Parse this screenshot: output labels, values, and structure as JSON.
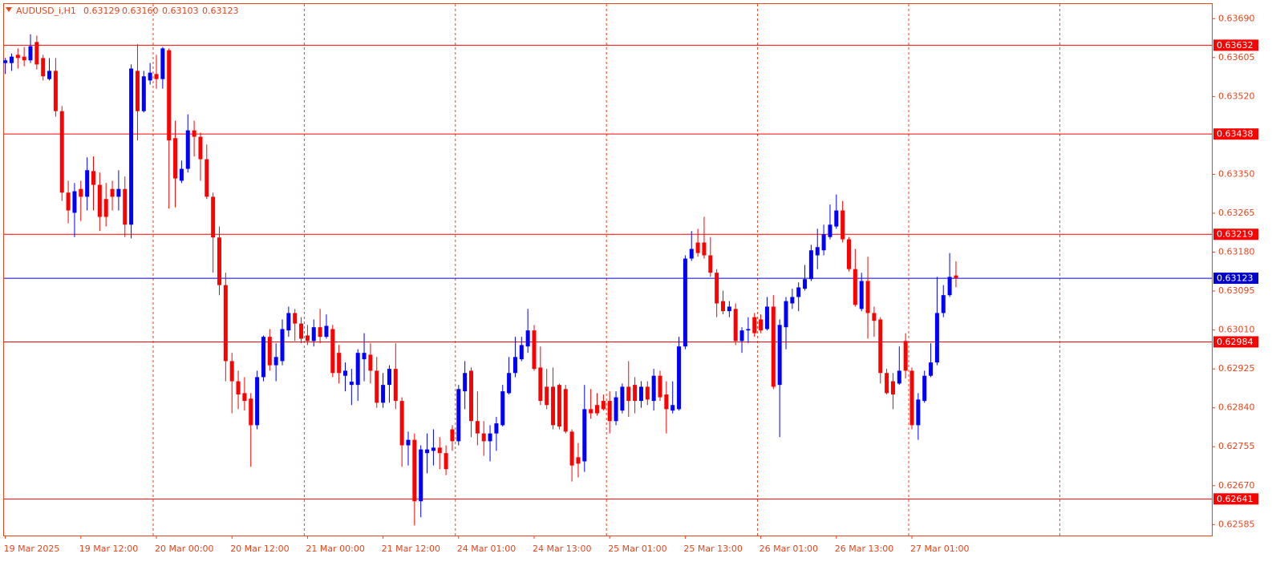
{
  "chart_data": {
    "type": "candlestick",
    "title": "AUDUSD_i,H1",
    "header_values": [
      "0.63129",
      "0.63160",
      "0.63103",
      "0.63123"
    ],
    "categories": [
      "19 Mar 2025",
      null,
      null,
      null,
      null,
      null,
      null,
      null,
      null,
      null,
      null,
      null,
      "19 Mar 12:00",
      null,
      null,
      null,
      null,
      null,
      null,
      null,
      null,
      null,
      null,
      null,
      "20 Mar 00:00",
      null,
      null,
      null,
      null,
      null,
      null,
      null,
      null,
      null,
      null,
      null,
      "20 Mar 12:00",
      null,
      null,
      null,
      null,
      null,
      null,
      null,
      null,
      null,
      null,
      null,
      "21 Mar 00:00",
      null,
      null,
      null,
      null,
      null,
      null,
      null,
      null,
      null,
      null,
      null,
      "21 Mar 12:00",
      null,
      null,
      null,
      null,
      null,
      null,
      null,
      null,
      null,
      null,
      null,
      "24 Mar 01:00",
      null,
      null,
      null,
      null,
      null,
      null,
      null,
      null,
      null,
      null,
      null,
      "24 Mar 13:00",
      null,
      null,
      null,
      null,
      null,
      null,
      null,
      null,
      null,
      null,
      null,
      "25 Mar 01:00",
      null,
      null,
      null,
      null,
      null,
      null,
      null,
      null,
      null,
      null,
      null,
      "25 Mar 13:00",
      null,
      null,
      null,
      null,
      null,
      null,
      null,
      null,
      null,
      null,
      null,
      "26 Mar 01:00",
      null,
      null,
      null,
      null,
      null,
      null,
      null,
      null,
      null,
      null,
      null,
      "26 Mar 13:00",
      null,
      null,
      null,
      null,
      null,
      null,
      null,
      null,
      null,
      null,
      null,
      "27 Mar 01:00",
      null,
      null,
      null,
      null,
      null,
      null,
      null
    ],
    "open": [
      0.63593,
      0.63593,
      0.63611,
      0.63607,
      0.63599,
      0.63639,
      0.63604,
      0.63558,
      0.63576,
      0.63488,
      0.6331,
      0.63266,
      0.63318,
      0.63301,
      0.63357,
      0.63327,
      0.63296,
      0.63318,
      0.63301,
      0.63318,
      0.6324,
      0.63576,
      0.63488,
      0.63555,
      0.63569,
      0.63558,
      0.63621,
      0.63429,
      0.63336,
      0.63362,
      0.63446,
      0.63432,
      0.63383,
      0.63301,
      0.63212,
      0.63108,
      0.62942,
      0.62898,
      0.62872,
      0.6286,
      0.62802,
      0.62907,
      0.62995,
      0.62933,
      0.62942,
      0.63009,
      0.63047,
      0.63024,
      0.62998,
      0.62986,
      0.63016,
      0.62995,
      0.63012,
      0.6296,
      0.6291,
      0.6289,
      0.6289,
      0.62946,
      0.62956,
      0.62921,
      0.62851,
      0.6289,
      0.62925,
      0.62855,
      0.62758,
      0.6277,
      0.62636,
      0.62741,
      0.62746,
      0.62753,
      0.62741,
      0.62793,
      0.62767,
      0.62876,
      0.62921,
      0.62811,
      0.62784,
      0.62767,
      0.62784,
      0.62802,
      0.62872,
      0.62916,
      0.62946,
      0.62974,
      0.63009,
      0.62928,
      0.62886,
      0.62886,
      0.6289,
      0.62881,
      0.62788,
      0.62732,
      0.62723,
      0.62837,
      0.62846,
      0.62855,
      0.62855,
      0.62811,
      0.62834,
      0.62886,
      0.6289,
      0.62855,
      0.62886,
      0.62855,
      0.6291,
      0.62869,
      0.62834,
      0.62837,
      0.62974,
      0.63166,
      0.63201,
      0.63201,
      0.63173,
      0.63135,
      0.63073,
      0.63051,
      0.63056,
      0.62986,
      0.63009,
      0.63038,
      0.63033,
      0.63012,
      0.63061,
      0.6289,
      0.63016,
      0.63068,
      0.63082,
      0.631,
      0.63121,
      0.63173,
      0.63184,
      0.63213,
      0.63236,
      0.63271,
      0.63208,
      0.63143,
      0.63056,
      0.63117,
      0.63047,
      0.63033,
      0.62916,
      0.62898,
      0.62893,
      0.62986,
      0.62921,
      0.62802,
      0.62855,
      0.6291,
      0.62939,
      0.63047,
      0.63086,
      0.63129
    ],
    "high": [
      0.63604,
      0.63614,
      0.63625,
      0.63628,
      0.63656,
      0.63653,
      0.63611,
      0.63604,
      0.63604,
      0.63499,
      0.63336,
      0.63331,
      0.63336,
      0.63387,
      0.63389,
      0.63354,
      0.63331,
      0.63336,
      0.63359,
      0.63345,
      0.6359,
      0.63634,
      0.63576,
      0.63593,
      0.63611,
      0.63628,
      0.63625,
      0.63467,
      0.6338,
      0.63481,
      0.63467,
      0.63441,
      0.63415,
      0.6331,
      0.63236,
      0.63135,
      0.6296,
      0.62921,
      0.62907,
      0.62872,
      0.62921,
      0.62998,
      0.63012,
      0.62981,
      0.63033,
      0.63061,
      0.63056,
      0.63038,
      0.63021,
      0.63033,
      0.63056,
      0.63044,
      0.63021,
      0.62977,
      0.62939,
      0.62925,
      0.62968,
      0.63003,
      0.62981,
      0.62951,
      0.62916,
      0.62933,
      0.62981,
      0.62863,
      0.62788,
      0.62784,
      0.62758,
      0.62784,
      0.62793,
      0.62776,
      0.62758,
      0.62802,
      0.6289,
      0.62942,
      0.62928,
      0.62876,
      0.62811,
      0.62802,
      0.6282,
      0.6289,
      0.62951,
      0.62995,
      0.62995,
      0.63056,
      0.63021,
      0.62974,
      0.62925,
      0.62928,
      0.62893,
      0.6289,
      0.62793,
      0.62763,
      0.6289,
      0.62881,
      0.62872,
      0.62869,
      0.62876,
      0.62876,
      0.62893,
      0.62942,
      0.62907,
      0.62898,
      0.62898,
      0.62925,
      0.62921,
      0.62898,
      0.62898,
      0.62995,
      0.63173,
      0.63226,
      0.63231,
      0.63257,
      0.63213,
      0.63143,
      0.63096,
      0.63073,
      0.63068,
      0.63016,
      0.63038,
      0.63047,
      0.63044,
      0.63082,
      0.63086,
      0.63033,
      0.63082,
      0.631,
      0.63114,
      0.63152,
      0.63196,
      0.63231,
      0.6324,
      0.63284,
      0.63306,
      0.63292,
      0.63213,
      0.63187,
      0.63135,
      0.6317,
      0.63061,
      0.63038,
      0.62925,
      0.62916,
      0.62974,
      0.63003,
      0.62928,
      0.62872,
      0.62921,
      0.62981,
      0.63126,
      0.63108,
      0.63178,
      0.6316
    ],
    "low": [
      0.63569,
      0.63576,
      0.63581,
      0.63586,
      0.63593,
      0.63579,
      0.63555,
      0.63555,
      0.63476,
      0.63292,
      0.63243,
      0.63213,
      0.63248,
      0.63271,
      0.63271,
      0.63226,
      0.63236,
      0.63271,
      0.63271,
      0.63213,
      0.6321,
      0.63424,
      0.63485,
      0.63546,
      0.63537,
      0.63537,
      0.63275,
      0.63278,
      0.63331,
      0.63354,
      0.63389,
      0.63336,
      0.63296,
      0.63135,
      0.63086,
      0.62898,
      0.62828,
      0.62837,
      0.62834,
      0.62711,
      0.62793,
      0.62898,
      0.62921,
      0.62898,
      0.62933,
      0.62995,
      0.62986,
      0.62981,
      0.62977,
      0.62974,
      0.62981,
      0.62991,
      0.62907,
      0.62893,
      0.62876,
      0.62846,
      0.62855,
      0.62898,
      0.62893,
      0.6284,
      0.6284,
      0.62851,
      0.62837,
      0.62711,
      0.62714,
      0.62583,
      0.62601,
      0.62697,
      0.62714,
      0.62706,
      0.62693,
      0.62746,
      0.62758,
      0.62837,
      0.62776,
      0.62758,
      0.62735,
      0.62723,
      0.62746,
      0.62799,
      0.62869,
      0.62907,
      0.62942,
      0.6296,
      0.62921,
      0.62846,
      0.62837,
      0.62793,
      0.62793,
      0.62784,
      0.62679,
      0.62688,
      0.627,
      0.62816,
      0.62823,
      0.62834,
      0.62784,
      0.62802,
      0.62828,
      0.6282,
      0.62828,
      0.6284,
      0.62846,
      0.62834,
      0.62855,
      0.62784,
      0.62828,
      0.62834,
      0.62968,
      0.63161,
      0.6317,
      0.63166,
      0.63126,
      0.63038,
      0.63044,
      0.63038,
      0.62977,
      0.6296,
      0.62981,
      0.62995,
      0.63003,
      0.63009,
      0.62881,
      0.62776,
      0.62968,
      0.63056,
      0.63051,
      0.63096,
      0.63117,
      0.63143,
      0.63173,
      0.63208,
      0.63231,
      0.63201,
      0.63138,
      0.63061,
      0.63051,
      0.62991,
      0.62995,
      0.62893,
      0.62869,
      0.62837,
      0.6289,
      0.62904,
      0.62793,
      0.6277,
      0.62851,
      0.62907,
      0.62933,
      0.63038,
      0.63082,
      0.63103
    ],
    "close": [
      0.63599,
      0.63607,
      0.63604,
      0.63599,
      0.6363,
      0.6359,
      0.63564,
      0.63576,
      0.63488,
      0.6331,
      0.63271,
      0.63313,
      0.63301,
      0.63359,
      0.63327,
      0.63257,
      0.63257,
      0.63301,
      0.63318,
      0.6324,
      0.63581,
      0.63488,
      0.63564,
      0.63572,
      0.63558,
      0.63625,
      0.63424,
      0.63341,
      0.63362,
      0.63446,
      0.63432,
      0.63383,
      0.63301,
      0.63212,
      0.63108,
      0.62942,
      0.62898,
      0.62869,
      0.62855,
      0.62802,
      0.62907,
      0.62995,
      0.62933,
      0.62951,
      0.63012,
      0.63047,
      0.63024,
      0.62991,
      0.62986,
      0.63016,
      0.62995,
      0.63019,
      0.62916,
      0.62916,
      0.62921,
      0.62897,
      0.6296,
      0.6296,
      0.62921,
      0.62851,
      0.6289,
      0.62925,
      0.62855,
      0.62758,
      0.6277,
      0.62636,
      0.62749,
      0.62749,
      0.62753,
      0.62741,
      0.62706,
      0.62767,
      0.62881,
      0.62916,
      0.62811,
      0.62784,
      0.62767,
      0.62784,
      0.62806,
      0.62876,
      0.62916,
      0.62951,
      0.62977,
      0.63009,
      0.62925,
      0.62855,
      0.62846,
      0.62802,
      0.62799,
      0.62788,
      0.62714,
      0.62718,
      0.62837,
      0.62828,
      0.62828,
      0.62837,
      0.62811,
      0.62863,
      0.62886,
      0.62855,
      0.62855,
      0.62886,
      0.62858,
      0.6291,
      0.62863,
      0.62837,
      0.62846,
      0.62974,
      0.63166,
      0.63187,
      0.63178,
      0.63173,
      0.63135,
      0.63068,
      0.63051,
      0.63061,
      0.62986,
      0.63009,
      0.63012,
      0.63003,
      0.63009,
      0.63061,
      0.62886,
      0.63021,
      0.63073,
      0.63082,
      0.63103,
      0.63121,
      0.63184,
      0.63191,
      0.63219,
      0.6324,
      0.63271,
      0.63208,
      0.63143,
      0.63065,
      0.63117,
      0.63047,
      0.6303,
      0.62916,
      0.62872,
      0.62869,
      0.62921,
      0.62921,
      0.62802,
      0.62858,
      0.6291,
      0.62939,
      0.63047,
      0.63086,
      0.63126,
      0.63123
    ],
    "up_color": "#0000ff",
    "down_color": "#ff0000",
    "ylim": [
      0.62561,
      0.63722
    ],
    "yticks": [
      {
        "value": 0.6369,
        "label": "0.63690"
      },
      0.63605,
      {
        "value": 0.6352,
        "label": "0.63520"
      },
      {
        "value": 0.6335,
        "label": "0.63350"
      },
      0.63265,
      {
        "value": 0.6318,
        "label": "0.63180"
      },
      0.63095,
      {
        "value": 0.6301,
        "label": "0.63010"
      },
      0.62925,
      {
        "value": 0.6284,
        "label": "0.62840"
      },
      0.62755,
      {
        "value": 0.6267,
        "label": "0.62670"
      },
      0.62585
    ],
    "levels": [
      0.63632,
      0.63438,
      0.63219,
      0.62984,
      0.62641
    ],
    "level_color": "#ff0000",
    "price_line": {
      "value": 0.63123,
      "color": "#0000c8"
    }
  }
}
